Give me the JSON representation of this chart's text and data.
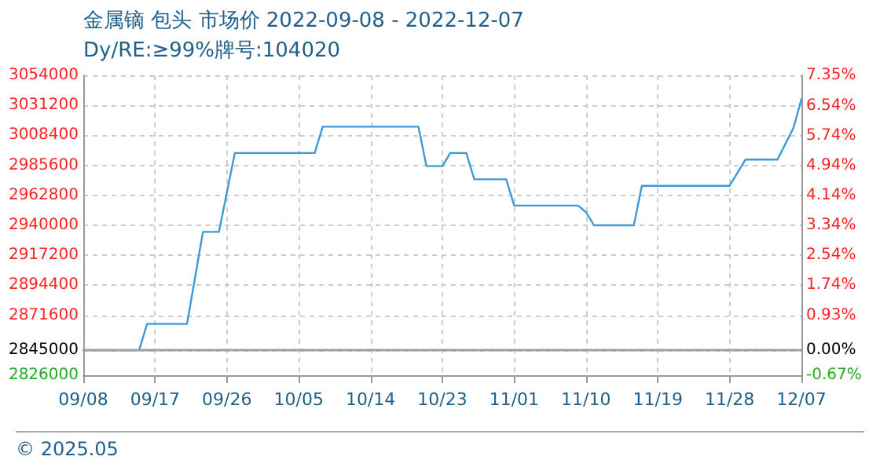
{
  "chart_data": {
    "type": "line",
    "title": "金属镝 包头 市场价 2022-09-08 - 2022-12-07",
    "subtitle": "Dy/RE:≥99%牌号:104020",
    "x": [
      "2022-09-08",
      "2022-09-15",
      "2022-09-16",
      "2022-09-21",
      "2022-09-22",
      "2022-09-23",
      "2022-09-25",
      "2022-09-26",
      "2022-09-27",
      "2022-10-07",
      "2022-10-08",
      "2022-10-20",
      "2022-10-21",
      "2022-10-23",
      "2022-10-24",
      "2022-10-26",
      "2022-10-27",
      "2022-10-31",
      "2022-11-01",
      "2022-11-09",
      "2022-11-10",
      "2022-11-11",
      "2022-11-16",
      "2022-11-17",
      "2022-11-28",
      "2022-11-29",
      "2022-11-30",
      "2022-12-04",
      "2022-12-05",
      "2022-12-06",
      "2022-12-07"
    ],
    "series": [
      {
        "color": "#3d9ad6",
        "values": [
          2845000,
          2845000,
          2865000,
          2865000,
          2900000,
          2935000,
          2935000,
          2965000,
          2995000,
          2995000,
          3015000,
          3015000,
          2985000,
          2985000,
          2995000,
          2995000,
          2975000,
          2975000,
          2955000,
          2955000,
          2950000,
          2940000,
          2940000,
          2970000,
          2970000,
          2980000,
          2990000,
          2990000,
          3002000,
          3014000,
          3036000
        ]
      }
    ],
    "xlim": [
      "2022-09-08",
      "2022-12-07"
    ],
    "xticks": [
      {
        "value": "2022-09-08",
        "label": "09/08"
      },
      {
        "value": "2022-09-17",
        "label": "09/17"
      },
      {
        "value": "2022-09-26",
        "label": "09/26"
      },
      {
        "value": "2022-10-05",
        "label": "10/05"
      },
      {
        "value": "2022-10-14",
        "label": "10/14"
      },
      {
        "value": "2022-10-23",
        "label": "10/23"
      },
      {
        "value": "2022-11-01",
        "label": "11/01"
      },
      {
        "value": "2022-11-10",
        "label": "11/10"
      },
      {
        "value": "2022-11-19",
        "label": "11/19"
      },
      {
        "value": "2022-11-28",
        "label": "11/28"
      },
      {
        "value": "2022-12-07",
        "label": "12/07"
      }
    ],
    "ylim": [
      2826000,
      3054000
    ],
    "yticks": [
      2826000,
      2845000,
      2871600,
      2894400,
      2917200,
      2940000,
      2962800,
      2985600,
      3008400,
      3031200,
      3054000
    ],
    "y2lim": [
      -0.67,
      7.35
    ],
    "y2ticks": [
      {
        "value": -0.67,
        "label": "-0.67%"
      },
      {
        "value": 0,
        "label": "0.00%"
      },
      {
        "value": 0.93,
        "label": "0.93%"
      },
      {
        "value": 1.74,
        "label": "1.74%"
      },
      {
        "value": 2.54,
        "label": "2.54%"
      },
      {
        "value": 3.34,
        "label": "3.34%"
      },
      {
        "value": 4.14,
        "label": "4.14%"
      },
      {
        "value": 4.94,
        "label": "4.94%"
      },
      {
        "value": 5.74,
        "label": "5.74%"
      },
      {
        "value": 6.54,
        "label": "6.54%"
      },
      {
        "value": 7.35,
        "label": "7.35%"
      }
    ],
    "ref_lines": [
      {
        "axis": "y",
        "value": 2845000,
        "color": "#a0a0a0"
      }
    ],
    "grid": true,
    "marker": "none",
    "line_style": "solid",
    "annotations": [
      "© 2025.05"
    ]
  }
}
